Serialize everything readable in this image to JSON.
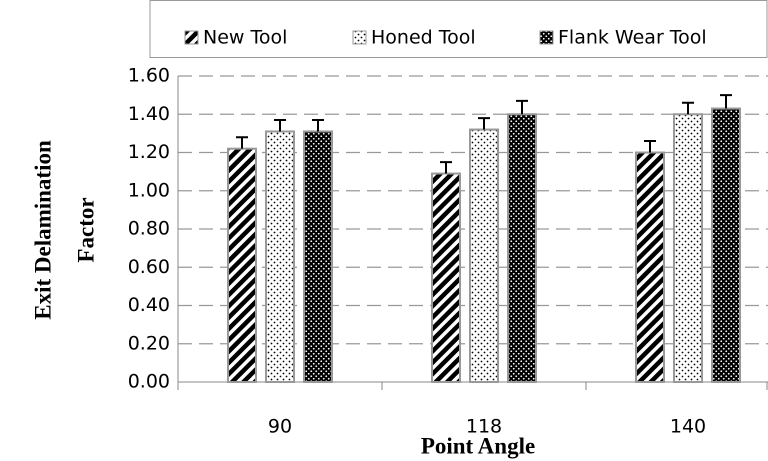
{
  "chart_data": {
    "type": "bar",
    "x_label": "Point Angle",
    "y_label_lines": [
      "Exit Delamination",
      "Factor"
    ],
    "categories": [
      "90",
      "118",
      "140"
    ],
    "series": [
      {
        "name": "New Tool",
        "color": "#000000",
        "values": [
          1.22,
          1.09,
          1.2
        ],
        "errors": [
          0.06,
          0.06,
          0.06
        ]
      },
      {
        "name": "Honed Tool",
        "color": "#000000",
        "values": [
          1.31,
          1.32,
          1.4
        ],
        "errors": [
          0.06,
          0.06,
          0.06
        ]
      },
      {
        "name": "Flank Wear Tool",
        "color": "#000000",
        "values": [
          1.31,
          1.4,
          1.43
        ],
        "errors": [
          0.06,
          0.07,
          0.07
        ]
      }
    ],
    "ylim": [
      0,
      1.6
    ],
    "yticks": [
      {
        "value": 0,
        "label": "0.00"
      },
      {
        "value": 0.2,
        "label": "0.20"
      },
      {
        "value": 0.4,
        "label": "0.40"
      },
      {
        "value": 0.6,
        "label": "0.60"
      },
      {
        "value": 0.8,
        "label": "0.80"
      },
      {
        "value": 1.0,
        "label": "1.00"
      },
      {
        "value": 1.2,
        "label": "1.20"
      },
      {
        "value": 1.4,
        "label": "1.40"
      },
      {
        "value": 1.6,
        "label": "1.60"
      }
    ],
    "grid": true,
    "legend": "top"
  }
}
